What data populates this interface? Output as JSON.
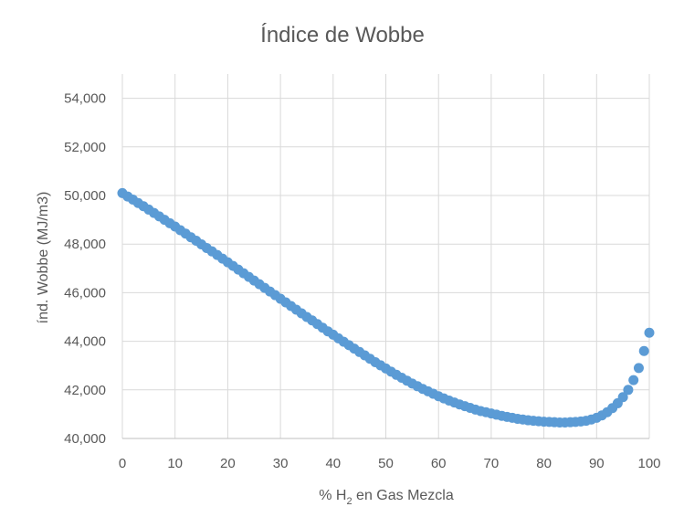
{
  "chart_data": {
    "type": "scatter",
    "title": "Índice de Wobbe",
    "xlabel": "% H2 en Gas Mezcla",
    "xlabel_parts": {
      "pre": "% H",
      "sub": "2",
      "post": " en Gas Mezcla"
    },
    "ylabel": "índ. Wobbe (MJ/m3)",
    "xlim": [
      0,
      100
    ],
    "ylim": [
      40,
      55
    ],
    "x_ticks": [
      0,
      10,
      20,
      30,
      40,
      50,
      60,
      70,
      80,
      90,
      100
    ],
    "x_tick_labels": [
      "0",
      "10",
      "20",
      "30",
      "40",
      "50",
      "60",
      "70",
      "80",
      "90",
      "100"
    ],
    "y_ticks": [
      40,
      42,
      44,
      46,
      48,
      50,
      52,
      54
    ],
    "y_tick_labels": [
      "40,000",
      "42,000",
      "44,000",
      "46,000",
      "48,000",
      "50,000",
      "52,000",
      "54,000"
    ],
    "grid": true,
    "marker_color": "#5b9bd5",
    "series": [
      {
        "x": [
          0,
          1,
          2,
          3,
          4,
          5,
          6,
          7,
          8,
          9,
          10,
          11,
          12,
          13,
          14,
          15,
          16,
          17,
          18,
          19,
          20,
          21,
          22,
          23,
          24,
          25,
          26,
          27,
          28,
          29,
          30,
          31,
          32,
          33,
          34,
          35,
          36,
          37,
          38,
          39,
          40,
          41,
          42,
          43,
          44,
          45,
          46,
          47,
          48,
          49,
          50,
          51,
          52,
          53,
          54,
          55,
          56,
          57,
          58,
          59,
          60,
          61,
          62,
          63,
          64,
          65,
          66,
          67,
          68,
          69,
          70,
          71,
          72,
          73,
          74,
          75,
          76,
          77,
          78,
          79,
          80,
          81,
          82,
          83,
          84,
          85,
          86,
          87,
          88,
          89,
          90,
          91,
          92,
          93,
          94,
          95,
          96,
          97,
          98,
          99,
          100
        ],
        "values": [
          50.1,
          49.96,
          49.83,
          49.69,
          49.56,
          49.42,
          49.28,
          49.14,
          49.0,
          48.86,
          48.72,
          48.57,
          48.43,
          48.28,
          48.14,
          47.99,
          47.84,
          47.7,
          47.55,
          47.4,
          47.25,
          47.1,
          46.95,
          46.8,
          46.65,
          46.5,
          46.35,
          46.2,
          46.05,
          45.9,
          45.75,
          45.6,
          45.45,
          45.3,
          45.15,
          45.0,
          44.86,
          44.71,
          44.56,
          44.41,
          44.27,
          44.12,
          43.98,
          43.84,
          43.7,
          43.56,
          43.42,
          43.28,
          43.14,
          43.01,
          42.88,
          42.75,
          42.62,
          42.5,
          42.38,
          42.26,
          42.15,
          42.04,
          41.94,
          41.84,
          41.74,
          41.65,
          41.56,
          41.48,
          41.4,
          41.33,
          41.26,
          41.19,
          41.13,
          41.08,
          41.03,
          40.98,
          40.93,
          40.89,
          40.85,
          40.81,
          40.78,
          40.75,
          40.73,
          40.71,
          40.69,
          40.68,
          40.67,
          40.66,
          40.66,
          40.67,
          40.68,
          40.7,
          40.73,
          40.78,
          40.85,
          40.95,
          41.08,
          41.25,
          41.45,
          41.7,
          42.0,
          42.4,
          42.9,
          43.6,
          44.35
        ]
      }
    ]
  }
}
